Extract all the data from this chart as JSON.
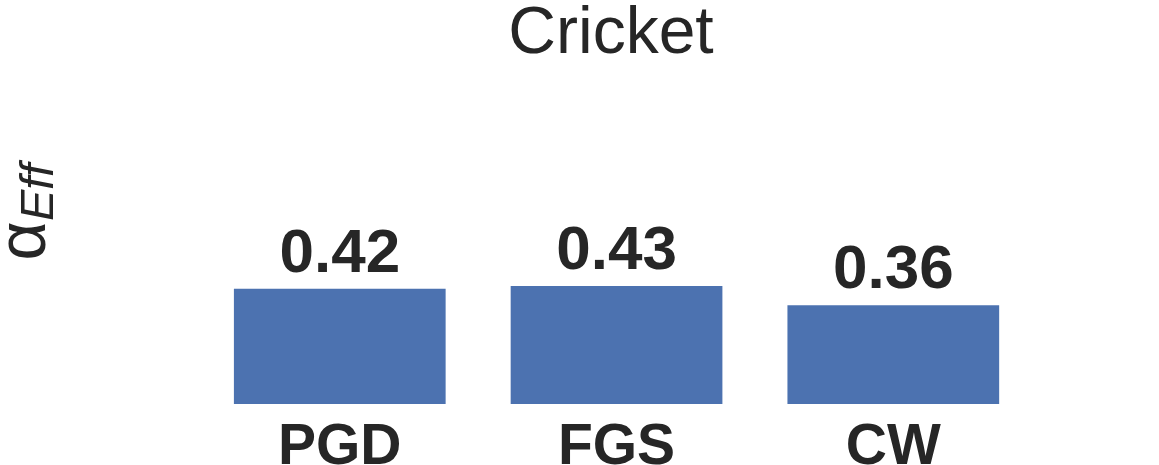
{
  "chart_data": {
    "type": "bar",
    "title": "Cricket",
    "ylabel": "α$_{Eff}$",
    "categories": [
      "PGD",
      "FGS",
      "CW"
    ],
    "values": [
      0.42,
      0.43,
      0.36
    ],
    "color": "#4c72b0",
    "tick_labels": "x",
    "data_labels": true
  }
}
